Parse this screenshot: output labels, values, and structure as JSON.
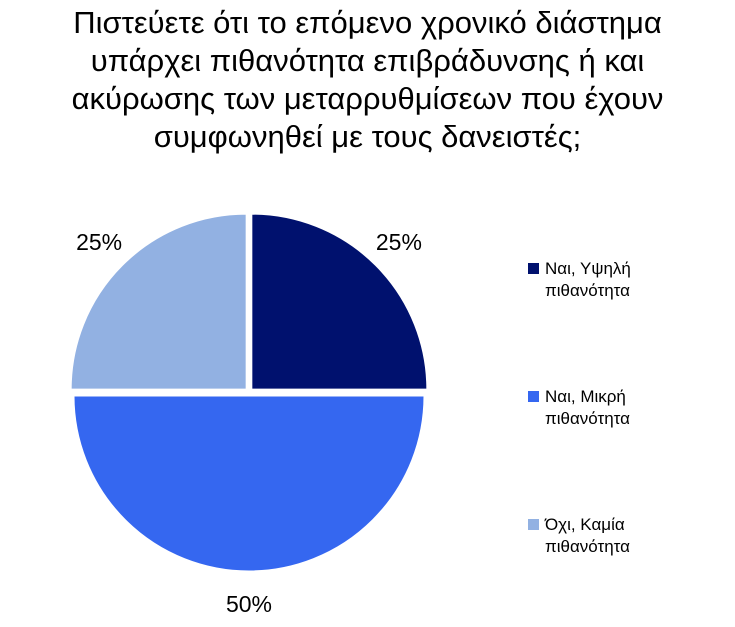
{
  "chart_data": {
    "type": "pie",
    "title_lines": [
      "Πιστεύετε ότι το επόμενο χρονικό διάστημα",
      "υπάρχει πιθανότητα επιβράδυνσης ή και",
      "ακύρωσης των μεταρρυθμίσεων που έχουν",
      "συμφωνηθεί με τους δανειστές;"
    ],
    "slices": [
      {
        "label_lines": [
          "Ναι, Υψηλή",
          "πιθανότητα"
        ],
        "value": 25,
        "value_label": "25%",
        "color": "#00116E"
      },
      {
        "label_lines": [
          "Ναι, Μικρή",
          "πιθανότητα"
        ],
        "value": 50,
        "value_label": "50%",
        "color": "#3567F0"
      },
      {
        "label_lines": [
          "Όχι, Καμία",
          "πιθανότητα"
        ],
        "value": 25,
        "value_label": "25%",
        "color": "#92B1E2"
      }
    ],
    "legend_position": "right"
  }
}
